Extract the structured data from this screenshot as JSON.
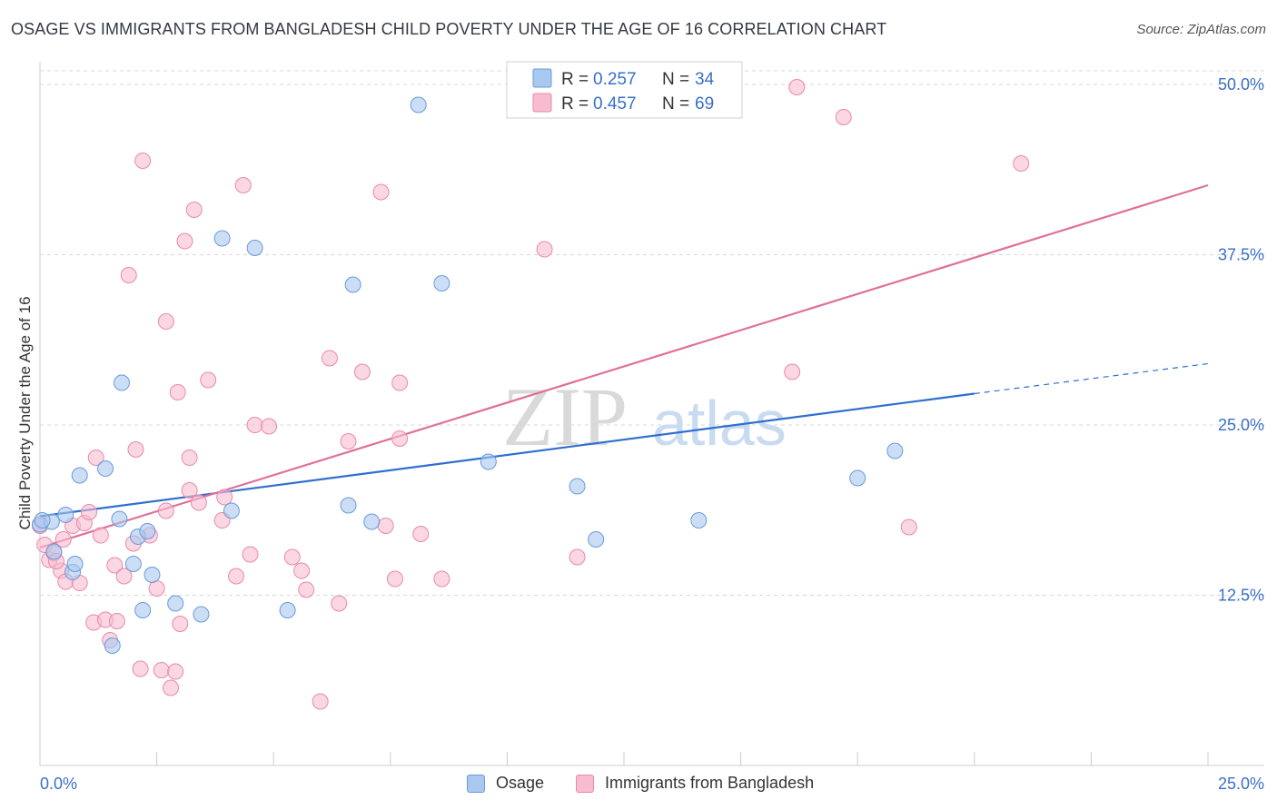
{
  "title": "OSAGE VS IMMIGRANTS FROM BANGLADESH CHILD POVERTY UNDER THE AGE OF 16 CORRELATION CHART",
  "source": "Source: ZipAtlas.com",
  "watermark": {
    "part1": "ZIP",
    "part2": "atlas"
  },
  "colors": {
    "osage_fill": "#a8c8f0",
    "osage_stroke": "#6b9bd8",
    "osage_line": "#2f6fce",
    "bangla_fill": "#f8bcd0",
    "bangla_stroke": "#e88aaa",
    "bangla_line": "#e0709a",
    "tick_label": "#3a6fc8",
    "grid": "#d8d8d8"
  },
  "legend_top": [
    {
      "r_label": "R = ",
      "r_value": "0.257",
      "n_label": "N = ",
      "n_value": "34"
    },
    {
      "r_label": "R = ",
      "r_value": "0.457",
      "n_label": "N = ",
      "n_value": "69"
    }
  ],
  "legend_bottom": [
    "Osage",
    "Immigrants from Bangladesh"
  ],
  "chart_data": {
    "type": "scatter",
    "title": "OSAGE VS IMMIGRANTS FROM BANGLADESH CHILD POVERTY UNDER THE AGE OF 16 CORRELATION CHART",
    "ylabel": "Child Poverty Under the Age of 16",
    "xlabel": "",
    "xlim": [
      0,
      25
    ],
    "ylim": [
      0,
      51
    ],
    "x_tick_labels": [
      "0.0%",
      "25.0%"
    ],
    "y_ticks": [
      12.5,
      25.0,
      37.5,
      50.0
    ],
    "y_tick_labels": [
      "12.5%",
      "25.0%",
      "37.5%",
      "50.0%"
    ],
    "grid": true,
    "legend_position": "top-center",
    "series": [
      {
        "name": "Osage",
        "trend": {
          "x0": 0,
          "y0": 18.3,
          "x1": 20.0,
          "y1": 27.3,
          "dash_to_x": 25,
          "dash_to_y": 29.5
        },
        "points": [
          [
            0.0,
            17.7
          ],
          [
            0.25,
            17.9
          ],
          [
            0.3,
            15.7
          ],
          [
            0.55,
            18.4
          ],
          [
            0.7,
            14.2
          ],
          [
            0.75,
            14.8
          ],
          [
            0.85,
            21.3
          ],
          [
            1.4,
            21.8
          ],
          [
            1.7,
            18.1
          ],
          [
            1.75,
            28.1
          ],
          [
            2.0,
            14.8
          ],
          [
            2.1,
            16.8
          ],
          [
            2.3,
            17.2
          ],
          [
            2.4,
            14.0
          ],
          [
            2.9,
            11.9
          ],
          [
            2.2,
            11.4
          ],
          [
            1.55,
            8.8
          ],
          [
            3.45,
            11.1
          ],
          [
            3.9,
            38.7
          ],
          [
            4.1,
            18.7
          ],
          [
            4.6,
            38.0
          ],
          [
            5.3,
            11.4
          ],
          [
            6.7,
            35.3
          ],
          [
            6.6,
            19.1
          ],
          [
            7.1,
            17.9
          ],
          [
            8.6,
            35.4
          ],
          [
            8.1,
            48.5
          ],
          [
            9.6,
            22.3
          ],
          [
            11.5,
            20.5
          ],
          [
            11.9,
            16.6
          ],
          [
            14.1,
            18.0
          ],
          [
            17.5,
            21.1
          ],
          [
            18.3,
            23.1
          ],
          [
            0.05,
            18.0
          ]
        ]
      },
      {
        "name": "Immigrants from Bangladesh",
        "trend": {
          "x0": 0,
          "y0": 16.0,
          "x1": 25,
          "y1": 42.6
        },
        "points": [
          [
            0.0,
            17.6
          ],
          [
            0.1,
            16.2
          ],
          [
            0.2,
            15.1
          ],
          [
            0.3,
            15.6
          ],
          [
            0.45,
            14.3
          ],
          [
            0.5,
            16.6
          ],
          [
            0.55,
            13.5
          ],
          [
            0.7,
            17.6
          ],
          [
            0.85,
            13.4
          ],
          [
            0.95,
            17.8
          ],
          [
            1.15,
            10.5
          ],
          [
            1.2,
            22.6
          ],
          [
            1.3,
            16.9
          ],
          [
            1.4,
            10.7
          ],
          [
            1.5,
            9.2
          ],
          [
            1.6,
            14.7
          ],
          [
            1.65,
            10.6
          ],
          [
            1.8,
            13.9
          ],
          [
            1.9,
            36.0
          ],
          [
            2.0,
            16.3
          ],
          [
            2.05,
            23.2
          ],
          [
            2.15,
            7.1
          ],
          [
            2.2,
            44.4
          ],
          [
            2.35,
            16.9
          ],
          [
            2.5,
            13.0
          ],
          [
            2.6,
            7.0
          ],
          [
            2.7,
            18.7
          ],
          [
            2.7,
            32.6
          ],
          [
            2.8,
            5.7
          ],
          [
            2.9,
            6.9
          ],
          [
            2.95,
            27.4
          ],
          [
            3.0,
            10.4
          ],
          [
            3.1,
            38.5
          ],
          [
            3.2,
            22.6
          ],
          [
            3.2,
            20.2
          ],
          [
            3.3,
            40.8
          ],
          [
            3.4,
            19.3
          ],
          [
            3.6,
            28.3
          ],
          [
            3.9,
            18.0
          ],
          [
            3.95,
            19.7
          ],
          [
            4.2,
            13.9
          ],
          [
            4.35,
            42.6
          ],
          [
            4.5,
            15.5
          ],
          [
            4.6,
            25.0
          ],
          [
            4.9,
            24.9
          ],
          [
            5.4,
            15.3
          ],
          [
            5.6,
            14.3
          ],
          [
            5.7,
            12.9
          ],
          [
            6.0,
            4.7
          ],
          [
            6.2,
            29.9
          ],
          [
            6.4,
            11.9
          ],
          [
            6.6,
            23.8
          ],
          [
            6.9,
            28.9
          ],
          [
            7.3,
            42.1
          ],
          [
            7.4,
            17.6
          ],
          [
            7.6,
            13.7
          ],
          [
            7.7,
            28.1
          ],
          [
            7.7,
            24.0
          ],
          [
            8.15,
            17.0
          ],
          [
            8.6,
            13.7
          ],
          [
            10.8,
            37.9
          ],
          [
            11.5,
            15.3
          ],
          [
            16.1,
            28.9
          ],
          [
            16.2,
            49.8
          ],
          [
            17.2,
            47.6
          ],
          [
            18.6,
            17.5
          ],
          [
            21.0,
            44.2
          ],
          [
            0.35,
            15.0
          ],
          [
            1.05,
            18.6
          ]
        ]
      }
    ]
  }
}
